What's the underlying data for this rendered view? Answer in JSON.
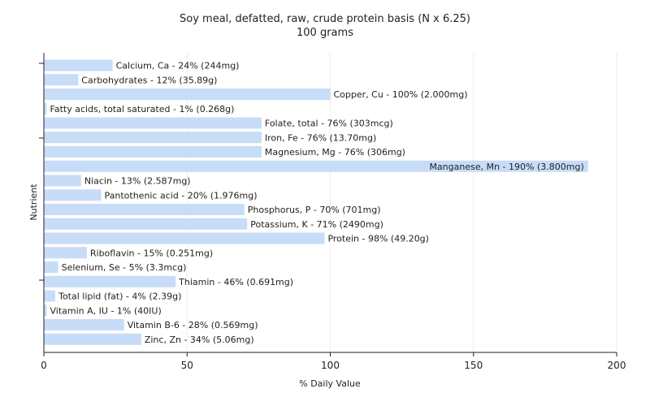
{
  "chart_data": {
    "type": "bar",
    "orientation": "horizontal",
    "title": "Soy meal, defatted, raw, crude protein basis (N x 6.25)",
    "subtitle": "100 grams",
    "xlabel": "% Daily Value",
    "ylabel": "Nutrient",
    "xlim": [
      0,
      200
    ],
    "xticks": [
      "0",
      "50",
      "100",
      "150",
      "200"
    ],
    "grid": true,
    "bar_color": "#c7dcf7",
    "categories": [
      "Calcium, Ca",
      "Carbohydrates",
      "Copper, Cu",
      "Fatty acids, total saturated",
      "Folate, total",
      "Iron, Fe",
      "Magnesium, Mg",
      "Manganese, Mn",
      "Niacin",
      "Pantothenic acid",
      "Phosphorus, P",
      "Potassium, K",
      "Protein",
      "Riboflavin",
      "Selenium, Se",
      "Thiamin",
      "Total lipid (fat)",
      "Vitamin A, IU",
      "Vitamin B-6",
      "Zinc, Zn"
    ],
    "values": [
      24,
      12,
      100,
      1,
      76,
      76,
      76,
      190,
      13,
      20,
      70,
      71,
      98,
      15,
      5,
      46,
      4,
      1,
      28,
      34
    ],
    "labels": [
      "Calcium, Ca - 24% (244mg)",
      "Carbohydrates - 12% (35.89g)",
      "Copper, Cu - 100% (2.000mg)",
      "Fatty acids, total saturated - 1% (0.268g)",
      "Folate, total - 76% (303mcg)",
      "Iron, Fe - 76% (13.70mg)",
      "Magnesium, Mg - 76% (306mg)",
      "Manganese, Mn - 190% (3.800mg)",
      "Niacin - 13% (2.587mg)",
      "Pantothenic acid - 20% (1.976mg)",
      "Phosphorus, P - 70% (701mg)",
      "Potassium, K - 71% (2490mg)",
      "Protein - 98% (49.20g)",
      "Riboflavin - 15% (0.251mg)",
      "Selenium, Se - 5% (3.3mcg)",
      "Thiamin - 46% (0.691mg)",
      "Total lipid (fat) - 4% (2.39g)",
      "Vitamin A, IU - 1% (40IU)",
      "Vitamin B-6 - 28% (0.569mg)",
      "Zinc, Zn - 34% (5.06mg)"
    ]
  }
}
